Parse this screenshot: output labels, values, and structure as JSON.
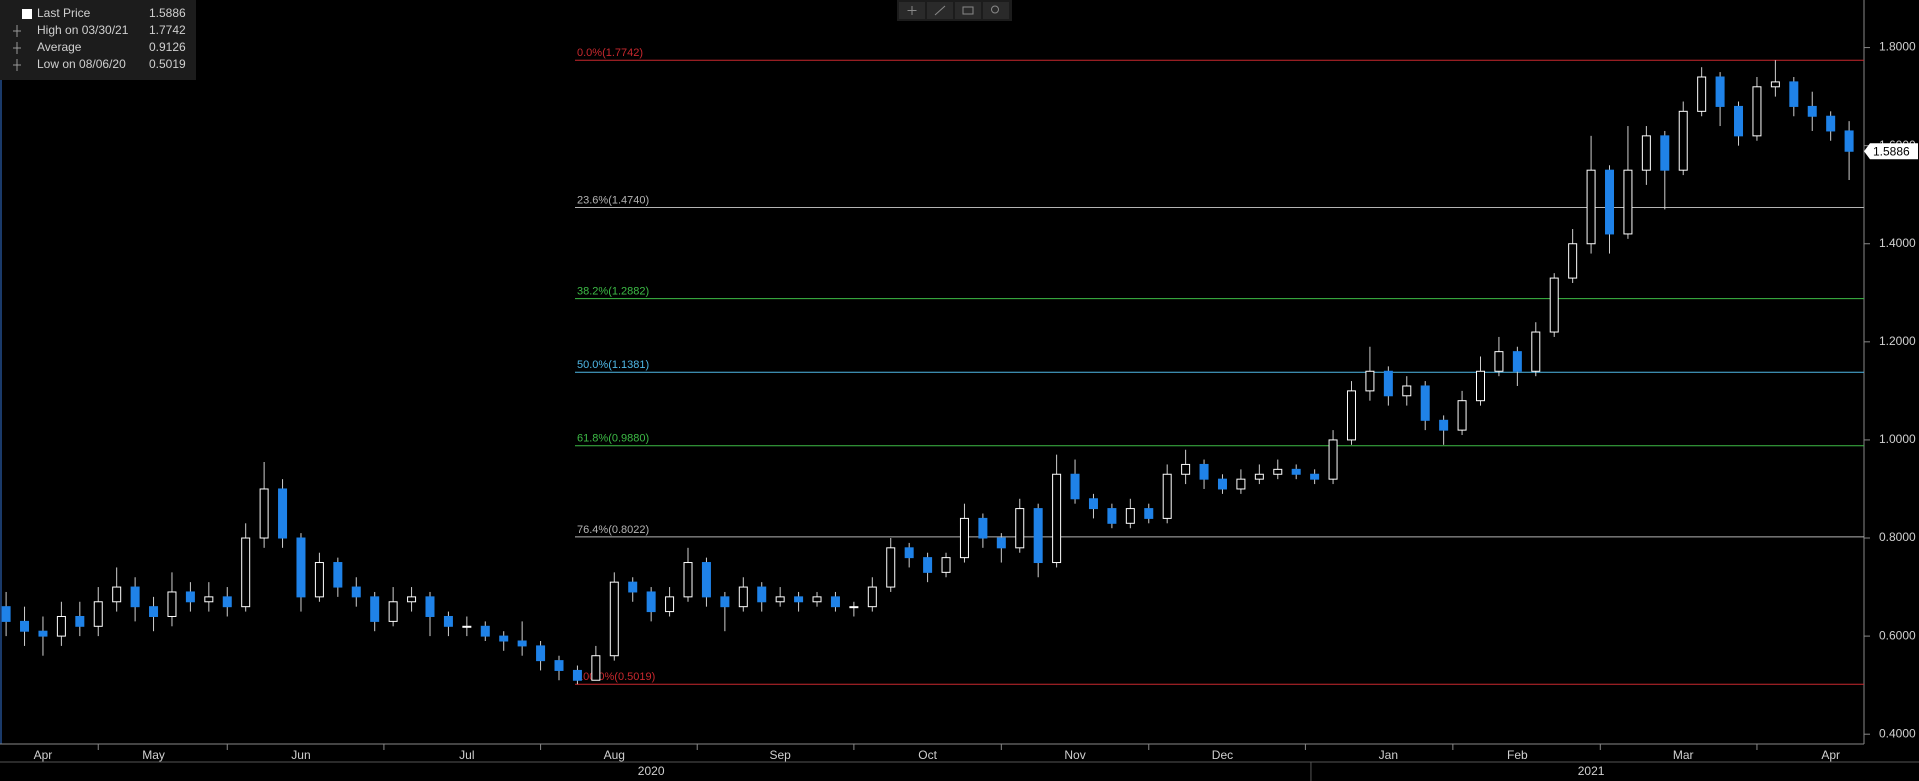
{
  "chart_data": {
    "type": "candlestick",
    "legend": [
      {
        "label": "Last Price",
        "value": 1.5886
      },
      {
        "label": "High on 03/30/21",
        "value": 1.7742
      },
      {
        "label": "Average",
        "value": 0.9126
      },
      {
        "label": "Low on 08/06/20",
        "value": 0.5019
      }
    ],
    "up_color": "#ffffff",
    "down_color": "#1f82e8",
    "ylim": [
      0.38,
      1.897
    ],
    "yticks": [
      {
        "value": 0.4,
        "label": "0.4000"
      },
      {
        "value": 0.6,
        "label": "0.6000"
      },
      {
        "value": 0.8,
        "label": "0.8000"
      },
      {
        "value": 1.0,
        "label": "1.0000"
      },
      {
        "value": 1.2,
        "label": "1.2000"
      },
      {
        "value": 1.4,
        "label": "1.4000"
      },
      {
        "value": 1.6,
        "label": "1.6000"
      },
      {
        "value": 1.8,
        "label": "1.8000"
      }
    ],
    "levels": [
      {
        "label": "0.0%(1.7742)",
        "value": 1.7742,
        "color": "#c8282e"
      },
      {
        "label": "23.6%(1.4740)",
        "value": 1.474,
        "color": "#b4b4b4"
      },
      {
        "label": "38.2%(1.2882)",
        "value": 1.2882,
        "color": "#3dbb46"
      },
      {
        "label": "50.0%(1.1381)",
        "value": 1.1381,
        "color": "#4fb8e6"
      },
      {
        "label": "61.8%(0.9880)",
        "value": 0.988,
        "color": "#3dbb46"
      },
      {
        "label": "76.4%(0.8022)",
        "value": 0.8022,
        "color": "#b4b4b4"
      },
      {
        "label": "100.0%(0.5019)",
        "value": 0.5019,
        "color": "#c8282e"
      }
    ],
    "categories": [
      null,
      null,
      "Apr",
      null,
      null,
      null,
      null,
      null,
      "May",
      null,
      null,
      null,
      null,
      null,
      null,
      null,
      "Jun",
      null,
      null,
      null,
      null,
      null,
      null,
      null,
      null,
      "Jul",
      null,
      null,
      null,
      null,
      null,
      null,
      null,
      "Aug",
      null,
      null,
      null,
      null,
      null,
      null,
      null,
      null,
      "Sep",
      null,
      null,
      null,
      null,
      null,
      null,
      null,
      "Oct",
      null,
      null,
      null,
      null,
      null,
      null,
      null,
      "Nov",
      null,
      null,
      null,
      null,
      null,
      null,
      null,
      "Dec",
      null,
      null,
      null,
      null,
      null,
      null,
      null,
      null,
      "Jan",
      null,
      null,
      null,
      null,
      null,
      null,
      "Feb",
      null,
      null,
      null,
      null,
      null,
      null,
      null,
      null,
      "Mar",
      null,
      null,
      null,
      null,
      null,
      null,
      null,
      "Apr",
      null
    ],
    "year_categories": [
      null,
      null,
      null,
      null,
      null,
      null,
      null,
      null,
      null,
      null,
      null,
      null,
      null,
      null,
      null,
      null,
      null,
      null,
      null,
      null,
      null,
      null,
      null,
      null,
      null,
      null,
      null,
      null,
      null,
      null,
      null,
      null,
      null,
      null,
      null,
      "2020",
      null,
      null,
      null,
      null,
      null,
      null,
      null,
      null,
      null,
      null,
      null,
      null,
      null,
      null,
      null,
      null,
      null,
      null,
      null,
      null,
      null,
      null,
      null,
      null,
      null,
      null,
      null,
      null,
      null,
      null,
      null,
      null,
      null,
      null,
      null,
      null,
      null,
      null,
      null,
      null,
      null,
      null,
      null,
      null,
      null,
      null,
      null,
      null,
      null,
      null,
      "2021",
      null,
      null,
      null,
      null,
      null,
      null,
      null,
      null,
      null,
      null,
      null,
      null,
      null,
      null
    ],
    "open": [
      0.66,
      0.63,
      0.61,
      0.6,
      0.64,
      0.62,
      0.67,
      0.7,
      0.66,
      0.64,
      0.69,
      0.67,
      0.68,
      0.66,
      0.8,
      0.9,
      0.8,
      0.68,
      0.75,
      0.7,
      0.68,
      0.63,
      0.67,
      0.68,
      0.64,
      0.62,
      0.62,
      0.6,
      0.59,
      0.58,
      0.55,
      0.53,
      0.51,
      0.56,
      0.71,
      0.69,
      0.65,
      0.68,
      0.75,
      0.68,
      0.66,
      0.7,
      0.67,
      0.68,
      0.67,
      0.68,
      0.66,
      0.66,
      0.7,
      0.78,
      0.76,
      0.73,
      0.76,
      0.84,
      0.8,
      0.78,
      0.86,
      0.75,
      0.93,
      0.88,
      0.86,
      0.83,
      0.86,
      0.84,
      0.93,
      0.95,
      0.92,
      0.9,
      0.92,
      0.93,
      0.94,
      0.93,
      0.92,
      1.0,
      1.1,
      1.14,
      1.09,
      1.11,
      1.04,
      1.02,
      1.08,
      1.14,
      1.18,
      1.14,
      1.22,
      1.33,
      1.4,
      1.55,
      1.42,
      1.55,
      1.62,
      1.55,
      1.67,
      1.74,
      1.68,
      1.62,
      1.72,
      1.73,
      1.68,
      1.66,
      1.63
    ],
    "high": [
      0.69,
      0.66,
      0.64,
      0.67,
      0.67,
      0.7,
      0.74,
      0.72,
      0.68,
      0.73,
      0.71,
      0.71,
      0.7,
      0.83,
      0.955,
      0.92,
      0.81,
      0.77,
      0.76,
      0.72,
      0.69,
      0.7,
      0.7,
      0.69,
      0.65,
      0.64,
      0.63,
      0.61,
      0.63,
      0.59,
      0.56,
      0.54,
      0.58,
      0.73,
      0.72,
      0.7,
      0.7,
      0.78,
      0.76,
      0.69,
      0.72,
      0.71,
      0.7,
      0.69,
      0.69,
      0.69,
      0.67,
      0.72,
      0.8,
      0.79,
      0.77,
      0.77,
      0.87,
      0.85,
      0.81,
      0.88,
      0.87,
      0.97,
      0.96,
      0.89,
      0.87,
      0.88,
      0.87,
      0.95,
      0.98,
      0.96,
      0.93,
      0.94,
      0.95,
      0.96,
      0.95,
      0.94,
      1.02,
      1.12,
      1.19,
      1.15,
      1.13,
      1.12,
      1.05,
      1.1,
      1.17,
      1.21,
      1.19,
      1.24,
      1.34,
      1.43,
      1.62,
      1.56,
      1.64,
      1.64,
      1.63,
      1.69,
      1.76,
      1.75,
      1.69,
      1.74,
      1.7742,
      1.74,
      1.71,
      1.67,
      1.65
    ],
    "low": [
      0.6,
      0.58,
      0.56,
      0.58,
      0.6,
      0.6,
      0.65,
      0.63,
      0.61,
      0.62,
      0.65,
      0.65,
      0.64,
      0.65,
      0.78,
      0.78,
      0.65,
      0.67,
      0.68,
      0.66,
      0.61,
      0.62,
      0.65,
      0.6,
      0.6,
      0.6,
      0.59,
      0.57,
      0.56,
      0.53,
      0.51,
      0.5019,
      0.51,
      0.55,
      0.67,
      0.63,
      0.64,
      0.67,
      0.66,
      0.61,
      0.65,
      0.65,
      0.66,
      0.65,
      0.66,
      0.65,
      0.64,
      0.65,
      0.69,
      0.74,
      0.71,
      0.72,
      0.75,
      0.78,
      0.75,
      0.77,
      0.72,
      0.74,
      0.87,
      0.84,
      0.82,
      0.82,
      0.83,
      0.83,
      0.91,
      0.9,
      0.89,
      0.89,
      0.91,
      0.92,
      0.92,
      0.91,
      0.91,
      0.99,
      1.08,
      1.07,
      1.07,
      1.02,
      0.99,
      1.01,
      1.07,
      1.13,
      1.11,
      1.13,
      1.21,
      1.32,
      1.38,
      1.38,
      1.41,
      1.52,
      1.47,
      1.54,
      1.66,
      1.64,
      1.6,
      1.61,
      1.7,
      1.66,
      1.63,
      1.61,
      1.53
    ],
    "close": [
      0.63,
      0.61,
      0.6,
      0.64,
      0.62,
      0.67,
      0.7,
      0.66,
      0.64,
      0.69,
      0.67,
      0.68,
      0.66,
      0.8,
      0.9,
      0.8,
      0.68,
      0.75,
      0.7,
      0.68,
      0.63,
      0.67,
      0.68,
      0.64,
      0.62,
      0.62,
      0.6,
      0.59,
      0.58,
      0.55,
      0.53,
      0.51,
      0.56,
      0.71,
      0.69,
      0.65,
      0.68,
      0.75,
      0.68,
      0.66,
      0.7,
      0.67,
      0.68,
      0.67,
      0.68,
      0.66,
      0.66,
      0.7,
      0.78,
      0.76,
      0.73,
      0.76,
      0.84,
      0.8,
      0.78,
      0.86,
      0.75,
      0.93,
      0.88,
      0.86,
      0.83,
      0.86,
      0.84,
      0.93,
      0.95,
      0.92,
      0.9,
      0.92,
      0.93,
      0.94,
      0.93,
      0.92,
      1.0,
      1.1,
      1.14,
      1.09,
      1.11,
      1.04,
      1.02,
      1.08,
      1.14,
      1.18,
      1.14,
      1.22,
      1.33,
      1.4,
      1.55,
      1.42,
      1.55,
      1.62,
      1.55,
      1.67,
      1.74,
      1.68,
      1.62,
      1.72,
      1.73,
      1.68,
      1.66,
      1.63,
      1.5886
    ]
  }
}
